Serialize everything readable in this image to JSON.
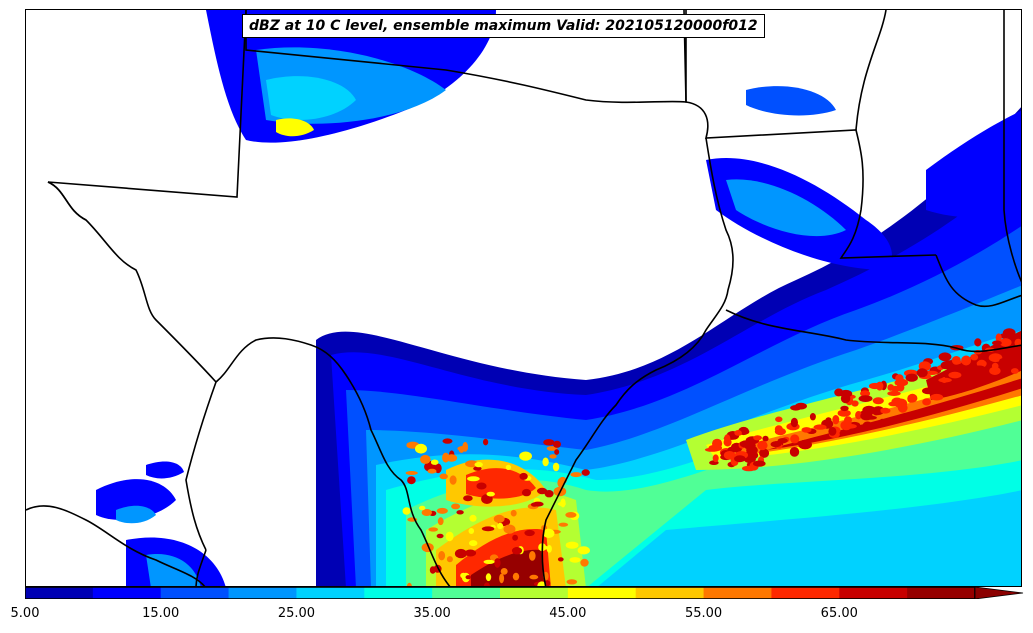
{
  "title": "dBZ at 10 C level, ensemble maximum Valid: 202105120000f012",
  "colorbar": {
    "levels": [
      5,
      10,
      15,
      20,
      25,
      30,
      35,
      40,
      45,
      50,
      55,
      60,
      65,
      70
    ],
    "colors": [
      "#0000b4",
      "#0000ff",
      "#0050ff",
      "#0096ff",
      "#00d2ff",
      "#00ffe6",
      "#50ff96",
      "#b4ff32",
      "#ffff00",
      "#ffc800",
      "#ff7800",
      "#ff2800",
      "#c80000",
      "#960000"
    ],
    "extend_color": "#8b0000",
    "tick_labels": [
      "5.00",
      "15.00",
      "25.00",
      "35.00",
      "45.00",
      "55.00",
      "65.00"
    ]
  },
  "map": {
    "region": "Texas / Gulf Coast",
    "border_color": "#000000"
  }
}
